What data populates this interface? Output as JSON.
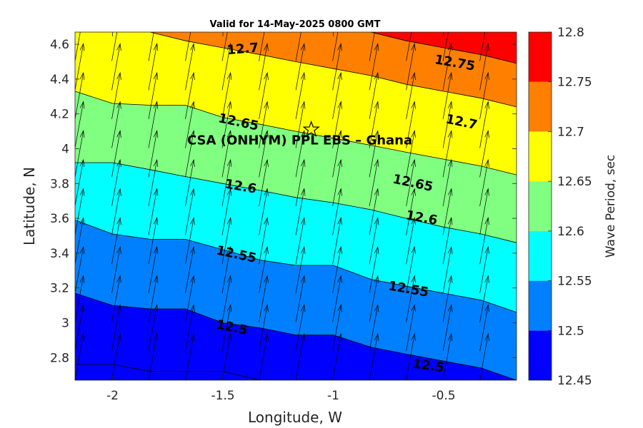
{
  "chart_data": {
    "type": "contour",
    "title": "Valid for 14-May-2025 0800 GMT",
    "xlabel": "Longitude, W",
    "ylabel": "Latitude, N",
    "xlim": [
      -2.17,
      -0.17
    ],
    "ylim": [
      2.67,
      4.67
    ],
    "xticks": [
      -2,
      -1.5,
      -1,
      -0.5
    ],
    "xtick_labels": [
      "-2",
      "-1.5",
      "-1",
      "-0.5"
    ],
    "yticks": [
      2.8,
      3,
      3.2,
      3.4,
      3.6,
      3.8,
      4,
      4.2,
      4.4,
      4.6
    ],
    "ytick_labels": [
      "2.8",
      "3",
      "3.2",
      "3.4",
      "3.6",
      "3.8",
      "4",
      "4.2",
      "4.4",
      "4.6"
    ],
    "colorbar": {
      "label": "Wave Period, sec",
      "levels": [
        12.45,
        12.5,
        12.55,
        12.6,
        12.65,
        12.7,
        12.75,
        12.8
      ],
      "level_labels": [
        "12.45",
        "12.5",
        "12.55",
        "12.6",
        "12.65",
        "12.7",
        "12.75",
        "12.8"
      ],
      "colors": [
        "#0000ff",
        "#0080ff",
        "#00ffff",
        "#80ff80",
        "#ffff00",
        "#ff8000",
        "#ff0000"
      ]
    },
    "contours": [
      {
        "level": 12.5,
        "label": "12.5",
        "points": [
          [
            -2.17,
            2.76
          ],
          [
            -2.0,
            2.76
          ],
          [
            -1.83,
            2.72
          ],
          [
            -1.67,
            2.72
          ],
          [
            -1.5,
            2.72
          ],
          [
            -1.33,
            2.67
          ]
        ]
      },
      {
        "level": 12.5,
        "label": "12.5",
        "points": [
          [
            -2.17,
            3.17
          ],
          [
            -2.0,
            3.1
          ],
          [
            -1.83,
            3.08
          ],
          [
            -1.67,
            3.08
          ],
          [
            -1.5,
            3.0
          ],
          [
            -1.33,
            2.97
          ],
          [
            -1.17,
            2.93
          ],
          [
            -1.0,
            2.93
          ],
          [
            -0.83,
            2.86
          ],
          [
            -0.67,
            2.82
          ],
          [
            -0.5,
            2.78
          ],
          [
            -0.33,
            2.74
          ],
          [
            -0.17,
            2.67
          ]
        ]
      },
      {
        "level": 12.55,
        "label": "12.55",
        "points": [
          [
            -2.17,
            3.59
          ],
          [
            -2.0,
            3.51
          ],
          [
            -1.83,
            3.48
          ],
          [
            -1.67,
            3.48
          ],
          [
            -1.5,
            3.42
          ],
          [
            -1.33,
            3.36
          ],
          [
            -1.17,
            3.33
          ],
          [
            -1.0,
            3.33
          ],
          [
            -0.83,
            3.25
          ],
          [
            -0.67,
            3.21
          ],
          [
            -0.5,
            3.17
          ],
          [
            -0.33,
            3.13
          ],
          [
            -0.17,
            3.06
          ]
        ]
      },
      {
        "level": 12.6,
        "label": "12.6",
        "points": [
          [
            -2.17,
            3.92
          ],
          [
            -2.0,
            3.92
          ],
          [
            -1.83,
            3.88
          ],
          [
            -1.67,
            3.84
          ],
          [
            -1.5,
            3.8
          ],
          [
            -1.33,
            3.76
          ],
          [
            -1.17,
            3.72
          ],
          [
            -1.0,
            3.69
          ],
          [
            -0.83,
            3.65
          ],
          [
            -0.67,
            3.6
          ],
          [
            -0.5,
            3.55
          ],
          [
            -0.33,
            3.51
          ],
          [
            -0.17,
            3.46
          ]
        ]
      },
      {
        "level": 12.65,
        "label": "12.65",
        "points": [
          [
            -2.17,
            4.33
          ],
          [
            -2.0,
            4.26
          ],
          [
            -1.83,
            4.25
          ],
          [
            -1.67,
            4.25
          ],
          [
            -1.5,
            4.18
          ],
          [
            -1.33,
            4.14
          ],
          [
            -1.17,
            4.1
          ],
          [
            -1.0,
            4.06
          ],
          [
            -0.83,
            4.02
          ],
          [
            -0.67,
            3.98
          ],
          [
            -0.5,
            3.94
          ],
          [
            -0.33,
            3.9
          ],
          [
            -0.17,
            3.85
          ]
        ]
      },
      {
        "level": 12.7,
        "label": "12.7",
        "points": [
          [
            -1.83,
            4.67
          ],
          [
            -1.67,
            4.62
          ],
          [
            -1.5,
            4.58
          ],
          [
            -1.33,
            4.54
          ],
          [
            -1.17,
            4.5
          ],
          [
            -1.0,
            4.46
          ],
          [
            -0.83,
            4.42
          ],
          [
            -0.67,
            4.37
          ],
          [
            -0.5,
            4.33
          ],
          [
            -0.33,
            4.29
          ],
          [
            -0.17,
            4.24
          ]
        ]
      },
      {
        "level": 12.75,
        "label": "12.75",
        "points": [
          [
            -0.83,
            4.67
          ],
          [
            -0.67,
            4.62
          ],
          [
            -0.5,
            4.58
          ],
          [
            -0.33,
            4.54
          ],
          [
            -0.17,
            4.49
          ]
        ]
      }
    ],
    "contour_labels": [
      {
        "text": "12.7",
        "x": -1.41,
        "y": 4.57,
        "angle": -5
      },
      {
        "text": "12.75",
        "x": -0.45,
        "y": 4.49,
        "angle": 10
      },
      {
        "text": "12.65",
        "x": -1.43,
        "y": 4.15,
        "angle": 12
      },
      {
        "text": "12.7",
        "x": -0.42,
        "y": 4.15,
        "angle": 12
      },
      {
        "text": "12.65",
        "x": -0.64,
        "y": 3.8,
        "angle": 12
      },
      {
        "text": "12.6",
        "x": -1.42,
        "y": 3.78,
        "angle": 10
      },
      {
        "text": "12.6",
        "x": -0.6,
        "y": 3.6,
        "angle": 10
      },
      {
        "text": "12.55",
        "x": -1.44,
        "y": 3.39,
        "angle": 12
      },
      {
        "text": "12.55",
        "x": -0.66,
        "y": 3.19,
        "angle": 10
      },
      {
        "text": "12.5",
        "x": -1.46,
        "y": 2.97,
        "angle": 12
      },
      {
        "text": "12.5",
        "x": -0.57,
        "y": 2.75,
        "angle": 8
      }
    ],
    "site": {
      "label": "CSA (ONHYM) PPL EBS  – Ghana",
      "lon": -1.1,
      "lat": 4.11,
      "marker": "star"
    },
    "vectors": {
      "lon_start": -2.17,
      "lat_start": 2.67,
      "step": 0.1667,
      "dx_dir": 0.18,
      "dy_dir": 1.0
    }
  }
}
